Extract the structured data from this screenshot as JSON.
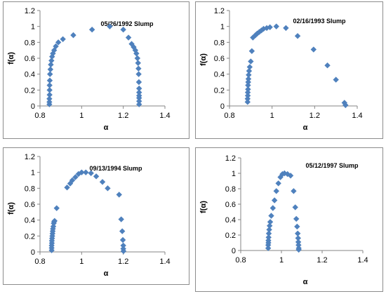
{
  "colors": {
    "marker": "#4f81bd",
    "axis": "#868686",
    "frame": "#8c8c8c"
  },
  "chart_data": [
    {
      "type": "scatter",
      "title": "05/26/1992 Slump",
      "xlabel": "α",
      "ylabel": "f(α)",
      "xlim": [
        0.8,
        1.4
      ],
      "ylim": [
        0,
        1.2
      ],
      "xticks": [
        "0.8",
        "1",
        "1.2",
        "1.4"
      ],
      "yticks": [
        "0",
        "0.2",
        "0.4",
        "0.6",
        "0.8",
        "1",
        "1.2"
      ],
      "grid": false,
      "legend": "none",
      "series": [
        {
          "x": [
            0.845,
            0.845,
            0.845,
            0.846,
            0.846,
            0.846,
            0.847,
            0.848,
            0.85,
            0.852,
            0.855,
            0.858,
            0.862,
            0.868,
            0.876,
            0.888,
            0.91,
            0.96,
            1.05,
            1.135,
            1.2,
            1.225,
            1.24,
            1.25,
            1.258,
            1.263,
            1.268,
            1.271,
            1.273,
            1.274,
            1.275,
            1.276,
            1.276,
            1.276,
            1.276,
            1.276,
            1.276
          ],
          "y": [
            0.02,
            0.05,
            0.09,
            0.14,
            0.2,
            0.26,
            0.32,
            0.4,
            0.46,
            0.52,
            0.57,
            0.62,
            0.66,
            0.7,
            0.75,
            0.8,
            0.84,
            0.89,
            0.96,
            1.0,
            0.96,
            0.86,
            0.78,
            0.74,
            0.7,
            0.66,
            0.6,
            0.54,
            0.47,
            0.4,
            0.3,
            0.22,
            0.17,
            0.13,
            0.1,
            0.06,
            0.02
          ]
        }
      ]
    },
    {
      "type": "scatter",
      "title": "02/16/1993 Slump",
      "xlabel": "α",
      "ylabel": "f(α)",
      "xlim": [
        0.8,
        1.4
      ],
      "ylim": [
        0,
        1.2
      ],
      "xticks": [
        "0.8",
        "1",
        "1.2",
        "1.4"
      ],
      "yticks": [
        "0",
        "0.2",
        "0.4",
        "0.6",
        "0.8",
        "1",
        "1.2"
      ],
      "grid": false,
      "legend": "none",
      "series": [
        {
          "x": [
            0.885,
            0.885,
            0.886,
            0.886,
            0.887,
            0.887,
            0.888,
            0.889,
            0.89,
            0.892,
            0.895,
            0.9,
            0.905,
            0.91,
            0.922,
            0.93,
            0.94,
            0.95,
            0.96,
            0.975,
            0.99,
            1.02,
            1.065,
            1.12,
            1.195,
            1.26,
            1.3,
            1.34,
            1.345
          ],
          "y": [
            0.05,
            0.09,
            0.13,
            0.17,
            0.21,
            0.26,
            0.3,
            0.34,
            0.39,
            0.44,
            0.49,
            0.56,
            0.69,
            0.86,
            0.89,
            0.91,
            0.93,
            0.95,
            0.97,
            0.98,
            0.99,
            1.0,
            0.98,
            0.88,
            0.71,
            0.51,
            0.33,
            0.04,
            0.01
          ]
        }
      ]
    },
    {
      "type": "scatter",
      "title": "09/13/1994  Slump",
      "xlabel": "α",
      "ylabel": "f(α)",
      "xlim": [
        0.8,
        1.4
      ],
      "ylim": [
        0,
        1.2
      ],
      "xticks": [
        "0.8",
        "1",
        "1.2",
        "1.4"
      ],
      "yticks": [
        "0",
        "0.2",
        "0.4",
        "0.6",
        "0.8",
        "1",
        "1.2"
      ],
      "grid": false,
      "legend": "none",
      "series": [
        {
          "x": [
            0.856,
            0.856,
            0.856,
            0.857,
            0.857,
            0.858,
            0.859,
            0.86,
            0.861,
            0.862,
            0.864,
            0.866,
            0.868,
            0.87,
            0.88,
            0.93,
            0.945,
            0.955,
            0.97,
            0.985,
            1.0,
            1.02,
            1.045,
            1.07,
            1.1,
            1.125,
            1.18,
            1.19,
            1.195,
            1.198,
            1.2,
            1.2,
            1.201
          ],
          "y": [
            0.02,
            0.05,
            0.08,
            0.11,
            0.14,
            0.17,
            0.2,
            0.23,
            0.26,
            0.29,
            0.32,
            0.36,
            0.38,
            0.39,
            0.55,
            0.81,
            0.86,
            0.9,
            0.94,
            0.98,
            1.0,
            1.0,
            0.99,
            0.95,
            0.88,
            0.8,
            0.72,
            0.41,
            0.26,
            0.15,
            0.08,
            0.04,
            0.01
          ]
        }
      ]
    },
    {
      "type": "scatter",
      "title": "05/12/1997 Slump",
      "xlabel": "α",
      "ylabel": "f(α)",
      "xlim": [
        0.8,
        1.4
      ],
      "ylim": [
        0,
        1.2
      ],
      "xticks": [
        "0.8",
        "1",
        "1.2",
        "1.4"
      ],
      "yticks": [
        "0",
        "0.2",
        "0.4",
        "0.6",
        "0.8",
        "1",
        "1.2"
      ],
      "grid": false,
      "legend": "none",
      "series": [
        {
          "x": [
            0.935,
            0.935,
            0.936,
            0.936,
            0.937,
            0.938,
            0.94,
            0.942,
            0.945,
            0.95,
            0.958,
            0.966,
            0.975,
            0.985,
            0.995,
            1.005,
            1.015,
            1.03,
            1.045,
            1.06,
            1.068,
            1.073,
            1.077,
            1.08,
            1.082,
            1.083,
            1.084,
            1.085,
            1.085
          ],
          "y": [
            0.03,
            0.07,
            0.1,
            0.13,
            0.17,
            0.22,
            0.27,
            0.32,
            0.37,
            0.45,
            0.55,
            0.65,
            0.77,
            0.87,
            0.95,
            0.99,
            1.0,
            0.99,
            0.97,
            0.77,
            0.56,
            0.41,
            0.31,
            0.22,
            0.16,
            0.11,
            0.07,
            0.03,
            0.01
          ]
        }
      ]
    }
  ]
}
